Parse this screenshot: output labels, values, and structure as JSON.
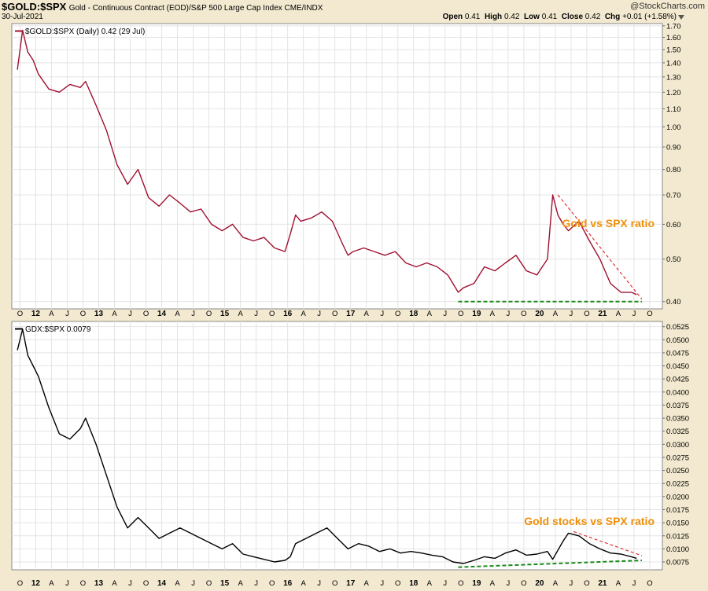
{
  "header": {
    "symbol": "$GOLD:$SPX",
    "description": "Gold - Continuous Contract (EOD)/S&P 500 Large Cap Index CME/INDX",
    "date": "30-Jul-2021",
    "brand": "@StockCharts.com",
    "open_label": "Open",
    "open_value": "0.41",
    "high_label": "High",
    "high_value": "0.42",
    "low_label": "Low",
    "low_value": "0.41",
    "close_label": "Close",
    "close_value": "0.42",
    "chg_label": "Chg",
    "chg_value": "+0.01 (+1.58%)"
  },
  "colors": {
    "background": "#f2e9d0",
    "panel": "#ffffff",
    "gold_line": "#a01030",
    "gdx_line": "#000000",
    "resistance": "#e02020",
    "support": "#1a8a1a",
    "annotation": "#f0900a",
    "grid": "#e4e4e4"
  },
  "chart_data": [
    {
      "type": "line",
      "legend": "$GOLD:$SPX (Daily) 0.42 (29 Jul)",
      "annotation": "Gold vs SPX ratio",
      "y_scale": "log",
      "ylim": [
        0.385,
        1.72
      ],
      "y_ticks": [
        "1.70",
        "1.60",
        "1.50",
        "1.40",
        "1.30",
        "1.20",
        "1.10",
        "1.00",
        "0.90",
        "0.80",
        "0.70",
        "0.60",
        "0.50",
        "0.40"
      ],
      "x_labels": [
        "O",
        "12",
        "A",
        "J",
        "O",
        "13",
        "A",
        "J",
        "O",
        "14",
        "A",
        "J",
        "O",
        "15",
        "A",
        "J",
        "O",
        "16",
        "A",
        "J",
        "O",
        "17",
        "A",
        "J",
        "O",
        "18",
        "A",
        "J",
        "O",
        "19",
        "A",
        "J",
        "O",
        "20",
        "A",
        "J",
        "O",
        "21",
        "A",
        "J",
        "O"
      ],
      "x": [
        "2011-09",
        "2011-10",
        "2011-11",
        "2011-12",
        "2012-01",
        "2012-03",
        "2012-05",
        "2012-07",
        "2012-09",
        "2012-10",
        "2012-12",
        "2013-02",
        "2013-04",
        "2013-06",
        "2013-08",
        "2013-10",
        "2013-12",
        "2014-02",
        "2014-04",
        "2014-06",
        "2014-08",
        "2014-10",
        "2014-12",
        "2015-02",
        "2015-04",
        "2015-06",
        "2015-08",
        "2015-10",
        "2015-12",
        "2016-01",
        "2016-02",
        "2016-03",
        "2016-05",
        "2016-07",
        "2016-09",
        "2016-11",
        "2016-12",
        "2017-01",
        "2017-03",
        "2017-05",
        "2017-07",
        "2017-09",
        "2017-11",
        "2018-01",
        "2018-03",
        "2018-05",
        "2018-07",
        "2018-09",
        "2018-10",
        "2018-12",
        "2019-02",
        "2019-04",
        "2019-06",
        "2019-08",
        "2019-10",
        "2019-12",
        "2020-02",
        "2020-03",
        "2020-04",
        "2020-05",
        "2020-06",
        "2020-08",
        "2020-10",
        "2020-12",
        "2021-02",
        "2021-04",
        "2021-06",
        "2021-07"
      ],
      "y": [
        1.35,
        1.66,
        1.48,
        1.42,
        1.32,
        1.22,
        1.2,
        1.25,
        1.23,
        1.27,
        1.12,
        0.98,
        0.82,
        0.74,
        0.8,
        0.69,
        0.66,
        0.7,
        0.67,
        0.64,
        0.65,
        0.6,
        0.58,
        0.6,
        0.56,
        0.55,
        0.56,
        0.53,
        0.52,
        0.57,
        0.63,
        0.61,
        0.62,
        0.64,
        0.61,
        0.54,
        0.51,
        0.52,
        0.53,
        0.52,
        0.51,
        0.52,
        0.49,
        0.48,
        0.49,
        0.48,
        0.46,
        0.42,
        0.43,
        0.44,
        0.48,
        0.47,
        0.49,
        0.51,
        0.47,
        0.46,
        0.5,
        0.7,
        0.63,
        0.6,
        0.58,
        0.61,
        0.55,
        0.5,
        0.44,
        0.42,
        0.42,
        0.415
      ],
      "trendlines": [
        {
          "style": "dashed",
          "color": "resistance",
          "from": [
            "2020-04",
            0.7
          ],
          "to": [
            "2021-08",
            0.405
          ]
        },
        {
          "style": "dashed",
          "color": "support",
          "from": [
            "2018-09",
            0.4
          ],
          "to": [
            "2021-08",
            0.4
          ]
        }
      ]
    },
    {
      "type": "line",
      "legend": "GDX:$SPX 0.0079",
      "annotation": "Gold stocks vs SPX ratio",
      "ylim": [
        0.006,
        0.0535
      ],
      "y_ticks": [
        "0.0525",
        "0.0500",
        "0.0475",
        "0.0450",
        "0.0425",
        "0.0400",
        "0.0375",
        "0.0350",
        "0.0325",
        "0.0300",
        "0.0275",
        "0.0250",
        "0.0225",
        "0.0200",
        "0.0175",
        "0.0150",
        "0.0125",
        "0.0100",
        "0.0075"
      ],
      "x_labels": [
        "O",
        "12",
        "A",
        "J",
        "O",
        "13",
        "A",
        "J",
        "O",
        "14",
        "A",
        "J",
        "O",
        "15",
        "A",
        "J",
        "O",
        "16",
        "A",
        "J",
        "O",
        "17",
        "A",
        "J",
        "O",
        "18",
        "A",
        "J",
        "O",
        "19",
        "A",
        "J",
        "O",
        "20",
        "A",
        "J",
        "O",
        "21",
        "A",
        "J",
        "O"
      ],
      "x": [
        "2011-09",
        "2011-10",
        "2011-11",
        "2011-12",
        "2012-01",
        "2012-03",
        "2012-05",
        "2012-07",
        "2012-09",
        "2012-10",
        "2012-12",
        "2013-02",
        "2013-04",
        "2013-06",
        "2013-08",
        "2013-10",
        "2013-12",
        "2014-02",
        "2014-04",
        "2014-06",
        "2014-08",
        "2014-10",
        "2014-12",
        "2015-02",
        "2015-04",
        "2015-06",
        "2015-08",
        "2015-10",
        "2015-12",
        "2016-01",
        "2016-02",
        "2016-04",
        "2016-06",
        "2016-08",
        "2016-10",
        "2016-12",
        "2017-02",
        "2017-04",
        "2017-06",
        "2017-08",
        "2017-10",
        "2017-12",
        "2018-02",
        "2018-04",
        "2018-06",
        "2018-08",
        "2018-10",
        "2018-12",
        "2019-02",
        "2019-04",
        "2019-06",
        "2019-08",
        "2019-10",
        "2019-12",
        "2020-02",
        "2020-03",
        "2020-05",
        "2020-06",
        "2020-08",
        "2020-10",
        "2020-12",
        "2021-02",
        "2021-04",
        "2021-06",
        "2021-07"
      ],
      "y": [
        0.048,
        0.052,
        0.047,
        0.045,
        0.043,
        0.037,
        0.032,
        0.031,
        0.033,
        0.035,
        0.03,
        0.024,
        0.018,
        0.014,
        0.016,
        0.014,
        0.012,
        0.013,
        0.014,
        0.013,
        0.012,
        0.011,
        0.01,
        0.011,
        0.009,
        0.0085,
        0.008,
        0.0075,
        0.0078,
        0.0085,
        0.011,
        0.012,
        0.013,
        0.014,
        0.012,
        0.01,
        0.011,
        0.0105,
        0.0095,
        0.01,
        0.0092,
        0.0095,
        0.0092,
        0.0088,
        0.0085,
        0.0075,
        0.0072,
        0.0078,
        0.0085,
        0.0082,
        0.0092,
        0.0098,
        0.0088,
        0.009,
        0.0095,
        0.008,
        0.0115,
        0.013,
        0.0125,
        0.011,
        0.01,
        0.0092,
        0.009,
        0.0085,
        0.0082
      ],
      "trendlines": [
        {
          "style": "dashed",
          "color": "resistance",
          "from": [
            "2020-07",
            0.0133
          ],
          "to": [
            "2021-08",
            0.0087
          ]
        },
        {
          "style": "dashed",
          "color": "support",
          "from": [
            "2018-09",
            0.0065
          ],
          "to": [
            "2021-08",
            0.0078
          ]
        }
      ]
    }
  ]
}
